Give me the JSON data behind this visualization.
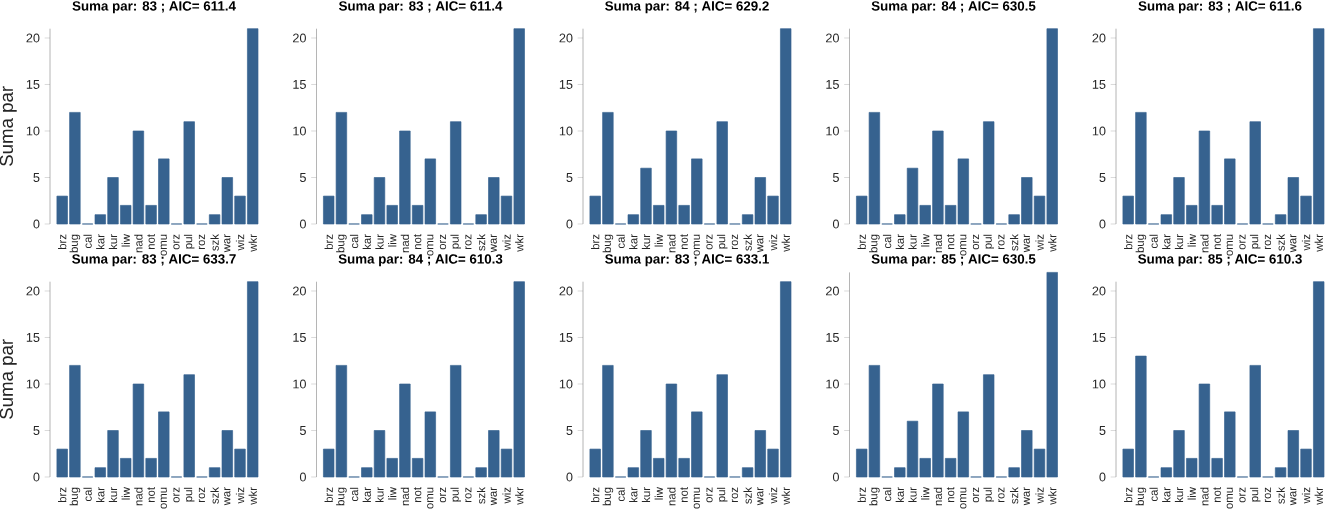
{
  "chart_data": [
    {
      "type": "bar",
      "title": "Suma par: 83 ; AIC= 611.4",
      "ylabel": "Suma par",
      "categories": [
        "brz",
        "bug",
        "cal",
        "kar",
        "kur",
        "liw",
        "nad",
        "not",
        "omu",
        "orz",
        "pul",
        "roz",
        "szk",
        "war",
        "wiz",
        "wkr"
      ],
      "values": [
        3,
        12,
        0,
        1,
        5,
        2,
        10,
        2,
        7,
        0,
        11,
        0,
        1,
        5,
        3,
        21
      ],
      "color": "#36628f",
      "ylim": [
        0,
        21
      ],
      "yticks": [
        0,
        5,
        10,
        15,
        20
      ]
    },
    {
      "type": "bar",
      "title": "Suma par: 83 ; AIC= 611.4",
      "categories": [
        "brz",
        "bug",
        "cal",
        "kar",
        "kur",
        "liw",
        "nad",
        "not",
        "omu",
        "orz",
        "pul",
        "roz",
        "szk",
        "war",
        "wiz",
        "wkr"
      ],
      "values": [
        3,
        12,
        0,
        1,
        5,
        2,
        10,
        2,
        7,
        0,
        11,
        0,
        1,
        5,
        3,
        21
      ],
      "color": "#36628f",
      "ylim": [
        0,
        21
      ],
      "yticks": [
        0,
        5,
        10,
        15,
        20
      ]
    },
    {
      "type": "bar",
      "title": "Suma par: 84 ; AIC= 629.2",
      "categories": [
        "brz",
        "bug",
        "cal",
        "kar",
        "kur",
        "liw",
        "nad",
        "not",
        "omu",
        "orz",
        "pul",
        "roz",
        "szk",
        "war",
        "wiz",
        "wkr"
      ],
      "values": [
        3,
        12,
        0,
        1,
        6,
        2,
        10,
        2,
        7,
        0,
        11,
        0,
        1,
        5,
        3,
        21
      ],
      "color": "#36628f",
      "ylim": [
        0,
        21
      ],
      "yticks": [
        0,
        5,
        10,
        15,
        20
      ]
    },
    {
      "type": "bar",
      "title": "Suma par: 84 ; AIC= 630.5",
      "categories": [
        "brz",
        "bug",
        "cal",
        "kar",
        "kur",
        "liw",
        "nad",
        "not",
        "omu",
        "orz",
        "pul",
        "roz",
        "szk",
        "war",
        "wiz",
        "wkr"
      ],
      "values": [
        3,
        12,
        0,
        1,
        6,
        2,
        10,
        2,
        7,
        0,
        11,
        0,
        1,
        5,
        3,
        21
      ],
      "color": "#36628f",
      "ylim": [
        0,
        21
      ],
      "yticks": [
        0,
        5,
        10,
        15,
        20
      ]
    },
    {
      "type": "bar",
      "title": "Suma par: 83 ; AIC= 611.6",
      "categories": [
        "brz",
        "bug",
        "cal",
        "kar",
        "kur",
        "liw",
        "nad",
        "not",
        "omu",
        "orz",
        "pul",
        "roz",
        "szk",
        "war",
        "wiz",
        "wkr"
      ],
      "values": [
        3,
        12,
        0,
        1,
        5,
        2,
        10,
        2,
        7,
        0,
        11,
        0,
        1,
        5,
        3,
        21
      ],
      "color": "#36628f",
      "ylim": [
        0,
        21
      ],
      "yticks": [
        0,
        5,
        10,
        15,
        20
      ]
    },
    {
      "type": "bar",
      "title": "Suma par: 83 ; AIC= 633.7",
      "ylabel": "Suma par",
      "categories": [
        "brz",
        "bug",
        "cal",
        "kar",
        "kur",
        "liw",
        "nad",
        "not",
        "omu",
        "orz",
        "pul",
        "roz",
        "szk",
        "war",
        "wiz",
        "wkr"
      ],
      "values": [
        3,
        12,
        0,
        1,
        5,
        2,
        10,
        2,
        7,
        0,
        11,
        0,
        1,
        5,
        3,
        21
      ],
      "color": "#36628f",
      "ylim": [
        0,
        21
      ],
      "yticks": [
        0,
        5,
        10,
        15,
        20
      ]
    },
    {
      "type": "bar",
      "title": "Suma par: 84 ; AIC= 610.3",
      "categories": [
        "brz",
        "bug",
        "cal",
        "kar",
        "kur",
        "liw",
        "nad",
        "not",
        "omu",
        "orz",
        "pul",
        "roz",
        "szk",
        "war",
        "wiz",
        "wkr"
      ],
      "values": [
        3,
        12,
        0,
        1,
        5,
        2,
        10,
        2,
        7,
        0,
        12,
        0,
        1,
        5,
        3,
        21
      ],
      "color": "#36628f",
      "ylim": [
        0,
        21
      ],
      "yticks": [
        0,
        5,
        10,
        15,
        20
      ]
    },
    {
      "type": "bar",
      "title": "Suma par: 83 ; AIC= 633.1",
      "categories": [
        "brz",
        "bug",
        "cal",
        "kar",
        "kur",
        "liw",
        "nad",
        "not",
        "omu",
        "orz",
        "pul",
        "roz",
        "szk",
        "war",
        "wiz",
        "wkr"
      ],
      "values": [
        3,
        12,
        0,
        1,
        5,
        2,
        10,
        2,
        7,
        0,
        11,
        0,
        1,
        5,
        3,
        21
      ],
      "color": "#36628f",
      "ylim": [
        0,
        21
      ],
      "yticks": [
        0,
        5,
        10,
        15,
        20
      ]
    },
    {
      "type": "bar",
      "title": "Suma par: 85 ; AIC= 630.5",
      "categories": [
        "brz",
        "bug",
        "cal",
        "kar",
        "kur",
        "liw",
        "nad",
        "not",
        "omu",
        "orz",
        "pul",
        "roz",
        "szk",
        "war",
        "wiz",
        "wkr"
      ],
      "values": [
        3,
        12,
        0,
        1,
        6,
        2,
        10,
        2,
        7,
        0,
        11,
        0,
        1,
        5,
        3,
        22
      ],
      "color": "#36628f",
      "ylim": [
        0,
        22
      ],
      "yticks": [
        0,
        5,
        10,
        15,
        20
      ]
    },
    {
      "type": "bar",
      "title": "Suma par: 85 ; AIC= 610.3",
      "categories": [
        "brz",
        "bug",
        "cal",
        "kar",
        "kur",
        "liw",
        "nad",
        "not",
        "omu",
        "orz",
        "pul",
        "roz",
        "szk",
        "war",
        "wiz",
        "wkr"
      ],
      "values": [
        3,
        13,
        0,
        1,
        5,
        2,
        10,
        2,
        7,
        0,
        12,
        0,
        1,
        5,
        3,
        21
      ],
      "color": "#36628f",
      "ylim": [
        0,
        21
      ],
      "yticks": [
        0,
        5,
        10,
        15,
        20
      ]
    }
  ]
}
